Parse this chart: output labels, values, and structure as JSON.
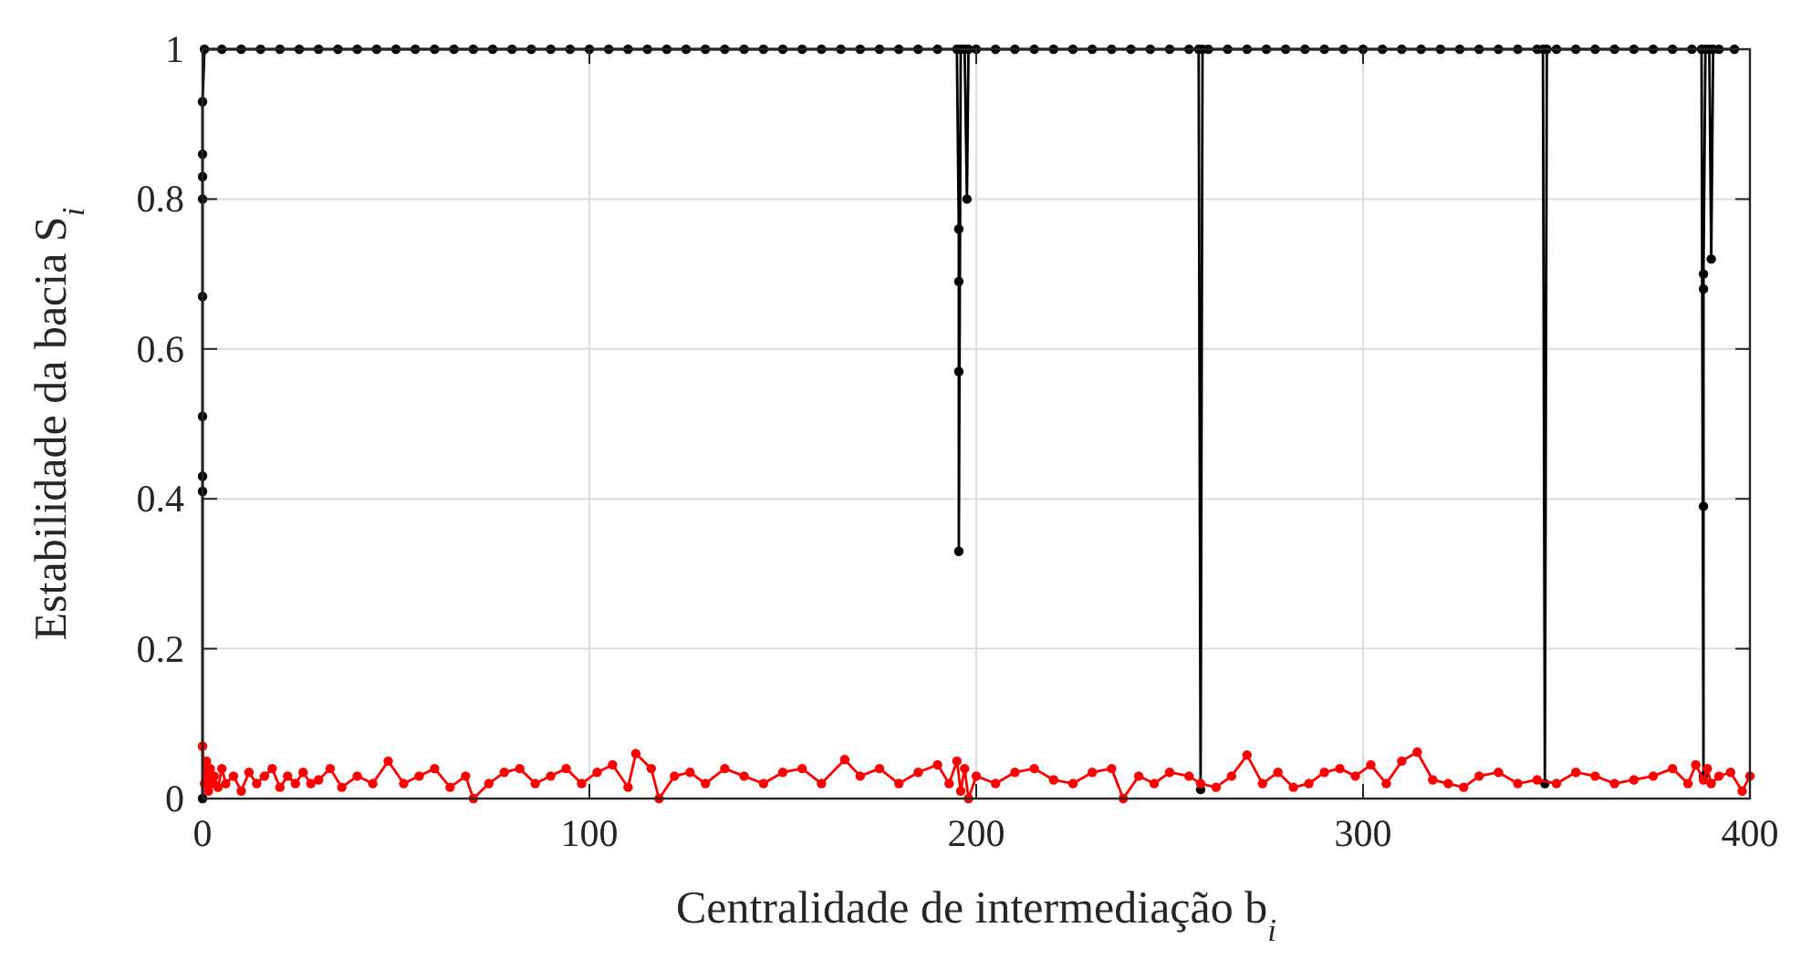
{
  "chart_data": {
    "type": "line",
    "xlabel": "Centralidade de intermediação b$_{i}$",
    "ylabel": "Estabilidade da bacia S$_{i}$",
    "xlim": [
      0,
      400
    ],
    "xticks": [
      0,
      100,
      200,
      300,
      400
    ],
    "ylim": [
      0,
      1
    ],
    "yticks": [
      0,
      0.2,
      0.4,
      0.6,
      0.8,
      1
    ],
    "grid": true,
    "marker": "circle",
    "line_style": "solid",
    "series": [
      {
        "color": "#000000",
        "x": [
          0,
          0,
          0,
          0,
          0,
          0,
          0,
          0,
          0,
          0.5,
          5,
          10,
          15,
          20,
          25,
          30,
          35,
          40,
          45,
          50,
          55,
          60,
          65,
          70,
          75,
          80,
          85,
          90,
          95,
          100,
          105,
          110,
          115,
          120,
          125,
          130,
          135,
          140,
          145,
          150,
          155,
          160,
          165,
          170,
          175,
          180,
          185,
          190,
          195,
          195.5,
          195.5,
          195.5,
          195.5,
          196,
          197,
          197.6,
          198,
          200,
          205,
          210,
          215,
          220,
          225,
          230,
          235,
          240,
          245,
          250,
          255,
          257.5,
          258,
          258.5,
          260,
          265,
          270,
          275,
          280,
          285,
          290,
          295,
          300,
          305,
          310,
          315,
          320,
          325,
          330,
          335,
          340,
          345,
          346.5,
          347,
          347.5,
          350,
          355,
          360,
          365,
          370,
          375,
          380,
          385,
          387.5,
          388,
          388,
          388,
          388,
          388.5,
          389.5,
          390,
          390.5,
          392,
          396
        ],
        "values": [
          0,
          0.41,
          0.43,
          0.51,
          0.67,
          0.8,
          0.83,
          0.86,
          0.93,
          1,
          1,
          1,
          1,
          1,
          1,
          1,
          1,
          1,
          1,
          1,
          1,
          1,
          1,
          1,
          1,
          1,
          1,
          1,
          1,
          1,
          1,
          1,
          1,
          1,
          1,
          1,
          1,
          1,
          1,
          1,
          1,
          1,
          1,
          1,
          1,
          1,
          1,
          1,
          1,
          0.76,
          0.69,
          0.57,
          0.33,
          1,
          1,
          0.8,
          1,
          1,
          1,
          1,
          1,
          1,
          1,
          1,
          1,
          1,
          1,
          1,
          1,
          1,
          0.012,
          1,
          1,
          1,
          1,
          1,
          1,
          1,
          1,
          1,
          1,
          1,
          1,
          1,
          1,
          1,
          1,
          1,
          1,
          1,
          1,
          0.02,
          1,
          1,
          1,
          1,
          1,
          1,
          1,
          1,
          1,
          1,
          0.03,
          0.39,
          0.68,
          0.7,
          1,
          1,
          0.72,
          1,
          1,
          1
        ]
      },
      {
        "color": "#ff0000",
        "x": [
          0,
          0.5,
          1,
          1.5,
          2,
          2.5,
          3,
          4,
          5,
          6,
          8,
          10,
          12,
          14,
          16,
          18,
          20,
          22,
          24,
          26,
          28,
          30,
          33,
          36,
          40,
          44,
          48,
          52,
          56,
          60,
          64,
          68,
          70,
          74,
          78,
          82,
          86,
          90,
          94,
          98,
          102,
          106,
          110,
          112,
          116,
          118,
          122,
          126,
          130,
          135,
          140,
          145,
          150,
          155,
          160,
          166,
          170,
          175,
          180,
          185,
          190,
          193,
          195,
          196,
          197,
          198,
          200,
          205,
          210,
          215,
          220,
          225,
          230,
          235,
          238,
          242,
          246,
          250,
          255,
          258,
          262,
          266,
          270,
          274,
          278,
          282,
          286,
          290,
          294,
          298,
          302,
          306,
          310,
          314,
          318,
          322,
          326,
          330,
          335,
          340,
          345,
          350,
          355,
          360,
          365,
          370,
          375,
          380,
          384,
          386,
          388,
          389,
          390,
          392,
          395,
          398,
          400
        ],
        "values": [
          0.07,
          0.02,
          0.05,
          0.01,
          0.04,
          0.02,
          0.03,
          0.015,
          0.04,
          0.02,
          0.03,
          0.01,
          0.035,
          0.02,
          0.03,
          0.04,
          0.015,
          0.03,
          0.02,
          0.035,
          0.02,
          0.025,
          0.04,
          0.015,
          0.03,
          0.02,
          0.05,
          0.02,
          0.03,
          0.04,
          0.015,
          0.03,
          0.0,
          0.02,
          0.035,
          0.04,
          0.02,
          0.03,
          0.04,
          0.02,
          0.035,
          0.045,
          0.015,
          0.06,
          0.04,
          0.0,
          0.03,
          0.035,
          0.02,
          0.04,
          0.03,
          0.02,
          0.035,
          0.04,
          0.02,
          0.052,
          0.03,
          0.04,
          0.02,
          0.035,
          0.045,
          0.02,
          0.05,
          0.01,
          0.04,
          0.0,
          0.03,
          0.02,
          0.035,
          0.04,
          0.025,
          0.02,
          0.035,
          0.04,
          0.0,
          0.03,
          0.02,
          0.035,
          0.03,
          0.02,
          0.015,
          0.03,
          0.058,
          0.02,
          0.035,
          0.015,
          0.02,
          0.035,
          0.04,
          0.03,
          0.045,
          0.02,
          0.05,
          0.062,
          0.025,
          0.02,
          0.015,
          0.03,
          0.035,
          0.02,
          0.025,
          0.02,
          0.035,
          0.03,
          0.02,
          0.025,
          0.03,
          0.04,
          0.02,
          0.045,
          0.025,
          0.04,
          0.02,
          0.03,
          0.035,
          0.01,
          0.03
        ]
      }
    ]
  }
}
